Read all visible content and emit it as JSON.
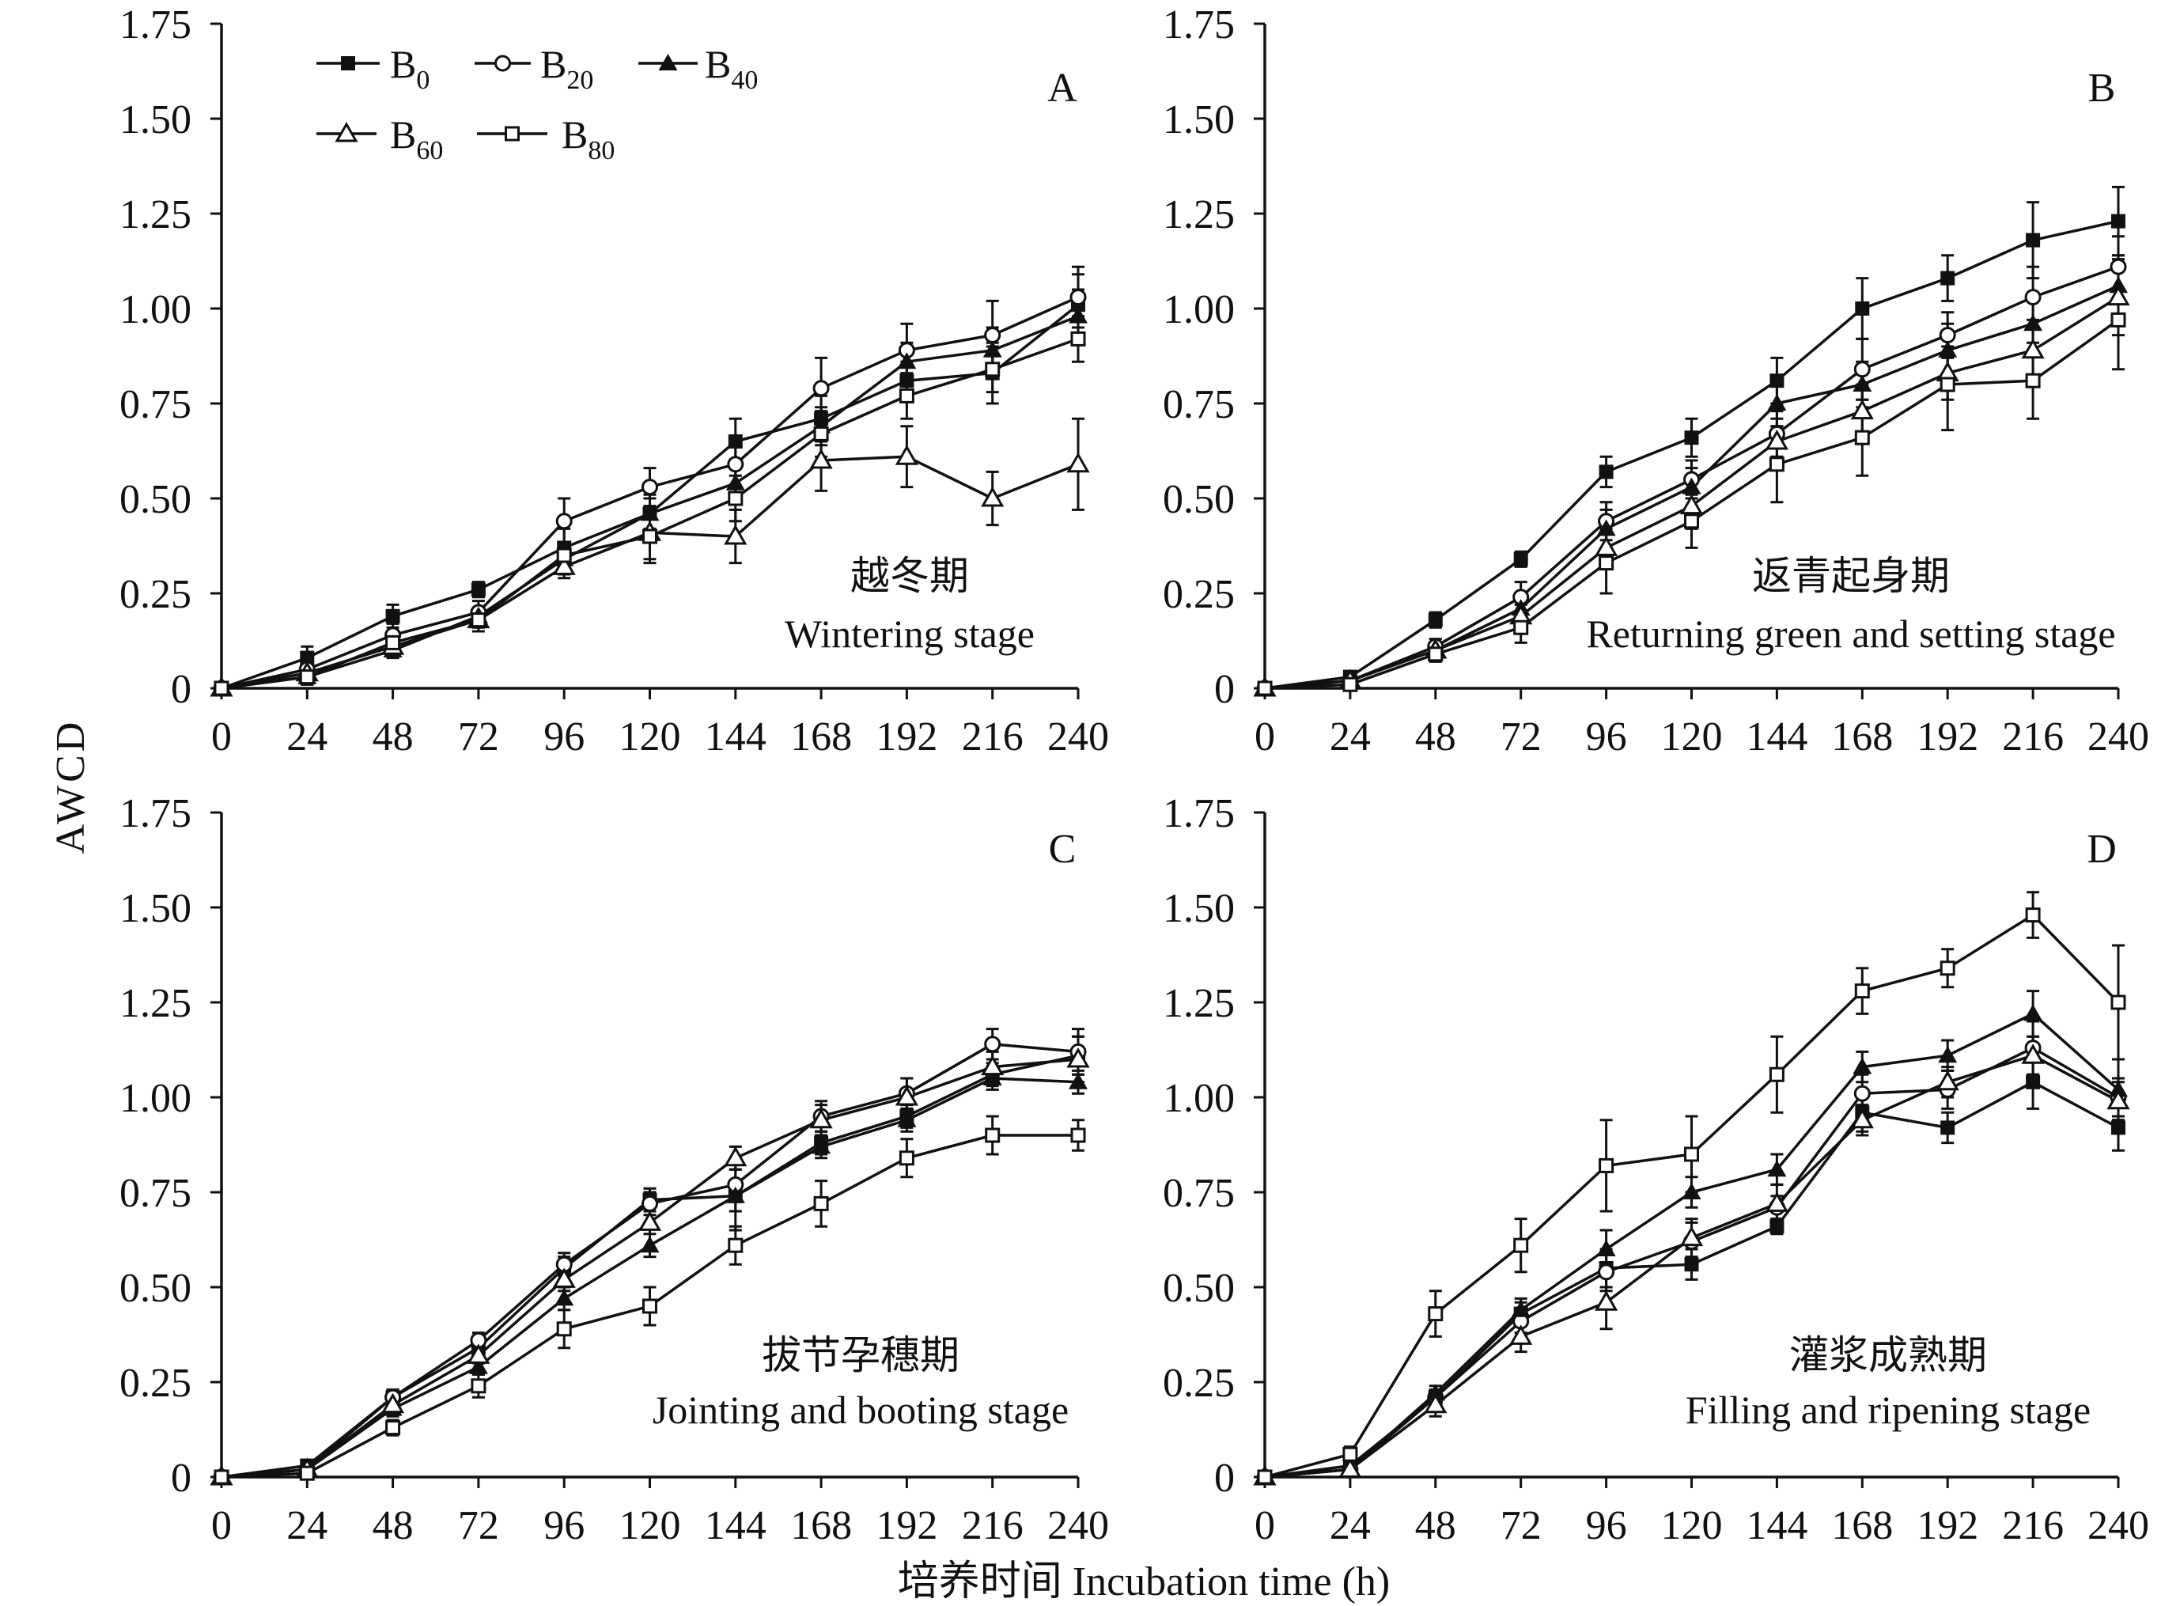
{
  "figure": {
    "ylabel": "AWCD",
    "xlabel": "培养时间 Incubation time (h)"
  },
  "legend": {
    "placement": "top-left",
    "items": [
      {
        "name": "B0",
        "marker": "filled-square"
      },
      {
        "name": "B20",
        "marker": "open-circle"
      },
      {
        "name": "B40",
        "marker": "filled-triangle"
      },
      {
        "name": "B60",
        "marker": "open-triangle"
      },
      {
        "name": "B80",
        "marker": "open-square"
      }
    ]
  },
  "chart_data": [
    {
      "type": "line",
      "panel_letter": "A",
      "stage_cn": "越冬期",
      "stage_en": "Wintering stage",
      "xlim": [
        0,
        240
      ],
      "ylim": [
        0,
        1.75
      ],
      "grid": false,
      "x": [
        0,
        24,
        48,
        72,
        96,
        120,
        144,
        168,
        192,
        216,
        240
      ],
      "xticks": [
        "0",
        "24",
        "48",
        "72",
        "96",
        "120",
        "144",
        "168",
        "192",
        "216",
        "240"
      ],
      "yticks": [
        "0",
        "0.25",
        "0.50",
        "0.75",
        "1.00",
        "1.25",
        "1.50",
        "1.75"
      ],
      "series": [
        {
          "name": "B0",
          "marker": "filled-square",
          "values": [
            0,
            0.08,
            0.19,
            0.26,
            0.37,
            0.46,
            0.65,
            0.71,
            0.81,
            0.83,
            1.01
          ],
          "err": [
            0,
            0.03,
            0.03,
            0.02,
            0.05,
            0.05,
            0.06,
            0.06,
            0.05,
            0.08,
            0.08
          ]
        },
        {
          "name": "B20",
          "marker": "open-circle",
          "values": [
            0,
            0.05,
            0.14,
            0.2,
            0.44,
            0.53,
            0.59,
            0.79,
            0.89,
            0.93,
            1.03
          ],
          "err": [
            0,
            0.02,
            0.03,
            0.03,
            0.06,
            0.05,
            0.06,
            0.08,
            0.07,
            0.09,
            0.08
          ]
        },
        {
          "name": "B40",
          "marker": "filled-triangle",
          "values": [
            0,
            0.03,
            0.1,
            0.19,
            0.34,
            0.46,
            0.54,
            0.69,
            0.86,
            0.89,
            0.98
          ],
          "err": [
            0,
            0.02,
            0.02,
            0.02,
            0.04,
            0.04,
            0.05,
            0.05,
            0.05,
            0.06,
            0.07
          ]
        },
        {
          "name": "B60",
          "marker": "open-triangle",
          "values": [
            0,
            0.04,
            0.11,
            0.18,
            0.32,
            0.41,
            0.4,
            0.6,
            0.61,
            0.5,
            0.59
          ],
          "err": [
            0,
            0.02,
            0.02,
            0.02,
            0.03,
            0.07,
            0.07,
            0.08,
            0.08,
            0.07,
            0.12
          ]
        },
        {
          "name": "B80",
          "marker": "open-square",
          "values": [
            0,
            0.03,
            0.12,
            0.18,
            0.35,
            0.4,
            0.5,
            0.67,
            0.77,
            0.84,
            0.92
          ],
          "err": [
            0,
            0.02,
            0.02,
            0.03,
            0.03,
            0.07,
            0.06,
            0.06,
            0.06,
            0.06,
            0.06
          ]
        }
      ]
    },
    {
      "type": "line",
      "panel_letter": "B",
      "stage_cn": "返青起身期",
      "stage_en": "Returning green and setting stage",
      "xlim": [
        0,
        240
      ],
      "ylim": [
        0,
        1.75
      ],
      "grid": false,
      "x": [
        0,
        24,
        48,
        72,
        96,
        120,
        144,
        168,
        192,
        216,
        240
      ],
      "xticks": [
        "0",
        "24",
        "48",
        "72",
        "96",
        "120",
        "144",
        "168",
        "192",
        "216",
        "240"
      ],
      "yticks": [
        "0",
        "0.25",
        "0.50",
        "0.75",
        "1.00",
        "1.25",
        "1.50",
        "1.75"
      ],
      "series": [
        {
          "name": "B0",
          "marker": "filled-square",
          "values": [
            0,
            0.03,
            0.18,
            0.34,
            0.57,
            0.66,
            0.81,
            1.0,
            1.08,
            1.18,
            1.23
          ],
          "err": [
            0,
            0.01,
            0.02,
            0.02,
            0.04,
            0.05,
            0.06,
            0.08,
            0.06,
            0.1,
            0.09
          ]
        },
        {
          "name": "B20",
          "marker": "open-circle",
          "values": [
            0,
            0.02,
            0.11,
            0.24,
            0.44,
            0.55,
            0.67,
            0.84,
            0.93,
            1.03,
            1.11
          ],
          "err": [
            0,
            0.01,
            0.02,
            0.04,
            0.05,
            0.05,
            0.06,
            0.08,
            0.06,
            0.08,
            0.08
          ]
        },
        {
          "name": "B40",
          "marker": "filled-triangle",
          "values": [
            0,
            0.02,
            0.1,
            0.21,
            0.42,
            0.53,
            0.75,
            0.8,
            0.89,
            0.96,
            1.06
          ],
          "err": [
            0,
            0.01,
            0.02,
            0.03,
            0.05,
            0.05,
            0.06,
            0.06,
            0.07,
            0.08,
            0.08
          ]
        },
        {
          "name": "B60",
          "marker": "open-triangle",
          "values": [
            0,
            0.02,
            0.1,
            0.19,
            0.37,
            0.48,
            0.65,
            0.73,
            0.83,
            0.89,
            1.03
          ],
          "err": [
            0,
            0.01,
            0.02,
            0.03,
            0.05,
            0.06,
            0.06,
            0.07,
            0.07,
            0.08,
            0.1
          ]
        },
        {
          "name": "B80",
          "marker": "open-square",
          "values": [
            0,
            0.01,
            0.09,
            0.16,
            0.33,
            0.44,
            0.59,
            0.66,
            0.8,
            0.81,
            0.97
          ],
          "err": [
            0,
            0.01,
            0.02,
            0.04,
            0.08,
            0.07,
            0.1,
            0.1,
            0.12,
            0.1,
            0.13
          ]
        }
      ]
    },
    {
      "type": "line",
      "panel_letter": "C",
      "stage_cn": "拔节孕穗期",
      "stage_en": "Jointing and booting stage",
      "xlim": [
        0,
        240
      ],
      "ylim": [
        0,
        1.75
      ],
      "grid": false,
      "x": [
        0,
        24,
        48,
        72,
        96,
        120,
        144,
        168,
        192,
        216,
        240
      ],
      "xticks": [
        "0",
        "24",
        "48",
        "72",
        "96",
        "120",
        "144",
        "168",
        "192",
        "216",
        "240"
      ],
      "yticks": [
        "0",
        "0.25",
        "0.50",
        "0.75",
        "1.00",
        "1.25",
        "1.50",
        "1.75"
      ],
      "series": [
        {
          "name": "B0",
          "marker": "filled-square",
          "values": [
            0,
            0.03,
            0.21,
            0.34,
            0.55,
            0.73,
            0.74,
            0.88,
            0.95,
            1.06,
            1.11
          ],
          "err": [
            0,
            0.01,
            0.02,
            0.02,
            0.03,
            0.03,
            0.09,
            0.03,
            0.03,
            0.03,
            0.05
          ]
        },
        {
          "name": "B20",
          "marker": "open-circle",
          "values": [
            0,
            0.02,
            0.21,
            0.36,
            0.56,
            0.72,
            0.77,
            0.95,
            1.01,
            1.14,
            1.12
          ],
          "err": [
            0,
            0.01,
            0.02,
            0.02,
            0.03,
            0.03,
            0.04,
            0.04,
            0.04,
            0.04,
            0.06
          ]
        },
        {
          "name": "B40",
          "marker": "filled-triangle",
          "values": [
            0,
            0.02,
            0.18,
            0.29,
            0.47,
            0.61,
            0.74,
            0.87,
            0.94,
            1.05,
            1.04
          ],
          "err": [
            0,
            0.01,
            0.02,
            0.02,
            0.03,
            0.03,
            0.04,
            0.03,
            0.03,
            0.03,
            0.03
          ]
        },
        {
          "name": "B60",
          "marker": "open-triangle",
          "values": [
            0,
            0.02,
            0.19,
            0.32,
            0.52,
            0.67,
            0.84,
            0.94,
            1.0,
            1.08,
            1.1
          ],
          "err": [
            0,
            0.01,
            0.02,
            0.02,
            0.03,
            0.07,
            0.03,
            0.04,
            0.05,
            0.04,
            0.06
          ]
        },
        {
          "name": "B80",
          "marker": "open-square",
          "values": [
            0,
            0.01,
            0.13,
            0.24,
            0.39,
            0.45,
            0.61,
            0.72,
            0.84,
            0.9,
            0.9
          ],
          "err": [
            0,
            0.01,
            0.02,
            0.03,
            0.05,
            0.05,
            0.05,
            0.06,
            0.05,
            0.05,
            0.04
          ]
        }
      ]
    },
    {
      "type": "line",
      "panel_letter": "D",
      "stage_cn": "灌浆成熟期",
      "stage_en": "Filling and ripening stage",
      "xlim": [
        0,
        240
      ],
      "ylim": [
        0,
        1.75
      ],
      "grid": false,
      "x": [
        0,
        24,
        48,
        72,
        96,
        120,
        144,
        168,
        192,
        216,
        240
      ],
      "xticks": [
        "0",
        "24",
        "48",
        "72",
        "96",
        "120",
        "144",
        "168",
        "192",
        "216",
        "240"
      ],
      "yticks": [
        "0",
        "0.25",
        "0.50",
        "0.75",
        "1.00",
        "1.25",
        "1.50",
        "1.75"
      ],
      "series": [
        {
          "name": "B0",
          "marker": "filled-square",
          "values": [
            0,
            0.03,
            0.21,
            0.43,
            0.55,
            0.56,
            0.66,
            0.96,
            0.92,
            1.04,
            0.92
          ],
          "err": [
            0,
            0.01,
            0.02,
            0.03,
            0.05,
            0.04,
            0.02,
            0.05,
            0.04,
            0.07,
            0.06
          ]
        },
        {
          "name": "B20",
          "marker": "open-circle",
          "values": [
            0,
            0.02,
            0.21,
            0.41,
            0.54,
            0.62,
            0.71,
            1.01,
            1.02,
            1.13,
            1.0
          ],
          "err": [
            0,
            0.01,
            0.02,
            0.03,
            0.05,
            0.05,
            0.03,
            0.05,
            0.05,
            0.07,
            0.05
          ]
        },
        {
          "name": "B40",
          "marker": "filled-triangle",
          "values": [
            0,
            0.02,
            0.22,
            0.44,
            0.6,
            0.75,
            0.81,
            1.08,
            1.11,
            1.22,
            1.02
          ],
          "err": [
            0,
            0.01,
            0.02,
            0.03,
            0.05,
            0.04,
            0.04,
            0.04,
            0.04,
            0.06,
            0.08
          ]
        },
        {
          "name": "B60",
          "marker": "open-triangle",
          "values": [
            0,
            0.02,
            0.19,
            0.37,
            0.46,
            0.63,
            0.72,
            0.94,
            1.04,
            1.11,
            0.99
          ],
          "err": [
            0,
            0.01,
            0.03,
            0.04,
            0.07,
            0.05,
            0.05,
            0.04,
            0.04,
            0.05,
            0.05
          ]
        },
        {
          "name": "B80",
          "marker": "open-square",
          "values": [
            0,
            0.06,
            0.43,
            0.61,
            0.82,
            0.85,
            1.06,
            1.28,
            1.34,
            1.48,
            1.25
          ],
          "err": [
            0,
            0.02,
            0.06,
            0.07,
            0.12,
            0.1,
            0.1,
            0.06,
            0.05,
            0.06,
            0.15
          ]
        }
      ]
    }
  ]
}
